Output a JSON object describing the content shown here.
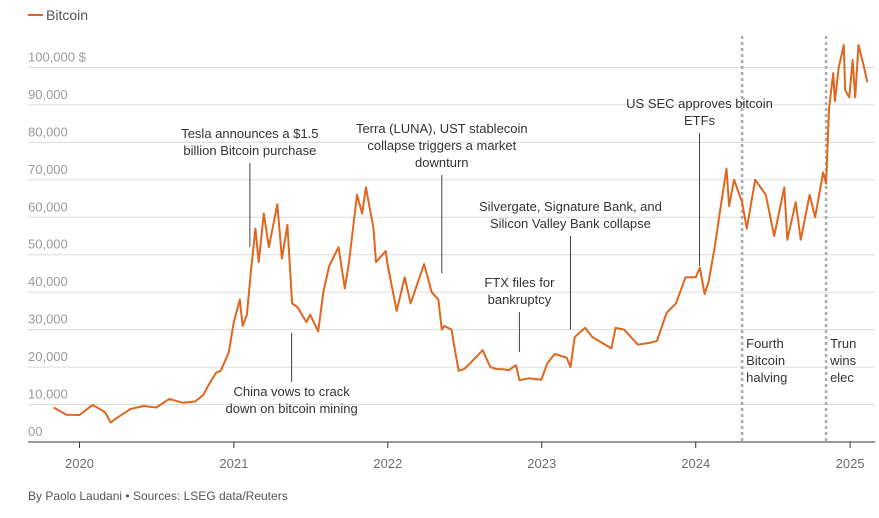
{
  "chart_data": {
    "type": "line",
    "legend": {
      "label": "Bitcoin",
      "color": "#e0661f",
      "placement": "top-left"
    },
    "ylabel_unit": "$",
    "ylim": [
      0,
      110000
    ],
    "yticks": [
      {
        "value": 0,
        "label": "00"
      },
      {
        "value": 10000,
        "label": "10,000"
      },
      {
        "value": 20000,
        "label": "20,000"
      },
      {
        "value": 30000,
        "label": "30,000"
      },
      {
        "value": 40000,
        "label": "40,000"
      },
      {
        "value": 50000,
        "label": "50,000"
      },
      {
        "value": 60000,
        "label": "60,000"
      },
      {
        "value": 70000,
        "label": "70,000"
      },
      {
        "value": 80000,
        "label": "80,000"
      },
      {
        "value": 90000,
        "label": "90,000"
      },
      {
        "value": 100000,
        "label": "100,000 $"
      }
    ],
    "xlim": [
      "2019-09-01",
      "2025-03-01"
    ],
    "xticks": [
      {
        "date": "2020-01-01",
        "label": "2020"
      },
      {
        "date": "2021-01-01",
        "label": "2021"
      },
      {
        "date": "2022-01-01",
        "label": "2022"
      },
      {
        "date": "2023-01-01",
        "label": "2023"
      },
      {
        "date": "2024-01-01",
        "label": "2024"
      },
      {
        "date": "2025-01-01",
        "label": "2025"
      }
    ],
    "grid": "horizontal",
    "series": [
      {
        "name": "Bitcoin",
        "color": "#e0661f",
        "points": [
          [
            "2019-11-01",
            9200
          ],
          [
            "2019-12-01",
            7300
          ],
          [
            "2020-01-01",
            7200
          ],
          [
            "2020-02-01",
            9900
          ],
          [
            "2020-03-01",
            8000
          ],
          [
            "2020-03-15",
            5200
          ],
          [
            "2020-04-01",
            6600
          ],
          [
            "2020-05-01",
            8800
          ],
          [
            "2020-06-01",
            9600
          ],
          [
            "2020-07-01",
            9200
          ],
          [
            "2020-08-01",
            11500
          ],
          [
            "2020-09-01",
            10500
          ],
          [
            "2020-10-01",
            10800
          ],
          [
            "2020-10-20",
            12500
          ],
          [
            "2020-11-01",
            15000
          ],
          [
            "2020-11-20",
            18500
          ],
          [
            "2020-12-01",
            19000
          ],
          [
            "2020-12-20",
            24000
          ],
          [
            "2021-01-01",
            32000
          ],
          [
            "2021-01-15",
            38000
          ],
          [
            "2021-01-22",
            31000
          ],
          [
            "2021-02-01",
            34000
          ],
          [
            "2021-02-10",
            45000
          ],
          [
            "2021-02-21",
            57000
          ],
          [
            "2021-03-01",
            48000
          ],
          [
            "2021-03-13",
            61000
          ],
          [
            "2021-03-25",
            52000
          ],
          [
            "2021-04-14",
            63500
          ],
          [
            "2021-04-25",
            49000
          ],
          [
            "2021-05-08",
            58000
          ],
          [
            "2021-05-19",
            37000
          ],
          [
            "2021-06-01",
            36000
          ],
          [
            "2021-06-22",
            32000
          ],
          [
            "2021-07-01",
            34000
          ],
          [
            "2021-07-20",
            29500
          ],
          [
            "2021-08-01",
            40000
          ],
          [
            "2021-08-15",
            47000
          ],
          [
            "2021-09-06",
            52000
          ],
          [
            "2021-09-21",
            41000
          ],
          [
            "2021-10-01",
            48000
          ],
          [
            "2021-10-20",
            66000
          ],
          [
            "2021-11-01",
            61000
          ],
          [
            "2021-11-10",
            68000
          ],
          [
            "2021-11-28",
            57000
          ],
          [
            "2021-12-04",
            48000
          ],
          [
            "2021-12-27",
            51000
          ],
          [
            "2022-01-01",
            47000
          ],
          [
            "2022-01-22",
            35000
          ],
          [
            "2022-02-10",
            44000
          ],
          [
            "2022-02-24",
            37000
          ],
          [
            "2022-03-28",
            47500
          ],
          [
            "2022-04-15",
            40000
          ],
          [
            "2022-05-01",
            38000
          ],
          [
            "2022-05-09",
            30000
          ],
          [
            "2022-05-15",
            31000
          ],
          [
            "2022-06-01",
            30000
          ],
          [
            "2022-06-13",
            22000
          ],
          [
            "2022-06-18",
            19000
          ],
          [
            "2022-07-01",
            19500
          ],
          [
            "2022-07-15",
            21000
          ],
          [
            "2022-08-01",
            23000
          ],
          [
            "2022-08-14",
            24500
          ],
          [
            "2022-09-01",
            20000
          ],
          [
            "2022-09-15",
            19500
          ],
          [
            "2022-10-01",
            19400
          ],
          [
            "2022-10-15",
            19200
          ],
          [
            "2022-11-01",
            20500
          ],
          [
            "2022-11-09",
            16500
          ],
          [
            "2022-12-01",
            17000
          ],
          [
            "2022-12-31",
            16600
          ],
          [
            "2023-01-14",
            21000
          ],
          [
            "2023-02-01",
            23500
          ],
          [
            "2023-03-01",
            22500
          ],
          [
            "2023-03-10",
            20000
          ],
          [
            "2023-03-20",
            28000
          ],
          [
            "2023-04-14",
            30500
          ],
          [
            "2023-05-01",
            28000
          ],
          [
            "2023-06-15",
            25000
          ],
          [
            "2023-06-25",
            30500
          ],
          [
            "2023-07-15",
            30000
          ],
          [
            "2023-08-17",
            26000
          ],
          [
            "2023-09-15",
            26500
          ],
          [
            "2023-10-01",
            27000
          ],
          [
            "2023-10-24",
            34500
          ],
          [
            "2023-11-15",
            37000
          ],
          [
            "2023-12-08",
            44000
          ],
          [
            "2024-01-01",
            44000
          ],
          [
            "2024-01-11",
            46500
          ],
          [
            "2024-01-22",
            39500
          ],
          [
            "2024-02-01",
            43000
          ],
          [
            "2024-02-15",
            52000
          ],
          [
            "2024-02-28",
            62000
          ],
          [
            "2024-03-14",
            73000
          ],
          [
            "2024-03-20",
            63000
          ],
          [
            "2024-04-01",
            70000
          ],
          [
            "2024-04-20",
            64000
          ],
          [
            "2024-05-01",
            57000
          ],
          [
            "2024-05-21",
            70000
          ],
          [
            "2024-06-15",
            66000
          ],
          [
            "2024-07-05",
            55000
          ],
          [
            "2024-07-29",
            68000
          ],
          [
            "2024-08-05",
            54000
          ],
          [
            "2024-08-25",
            64000
          ],
          [
            "2024-09-06",
            54000
          ],
          [
            "2024-09-27",
            66000
          ],
          [
            "2024-10-10",
            60000
          ],
          [
            "2024-10-29",
            72000
          ],
          [
            "2024-11-05",
            69000
          ],
          [
            "2024-11-12",
            89000
          ],
          [
            "2024-11-22",
            98500
          ],
          [
            "2024-11-26",
            91000
          ],
          [
            "2024-12-05",
            100000
          ],
          [
            "2024-12-17",
            106000
          ],
          [
            "2024-12-20",
            94000
          ],
          [
            "2024-12-30",
            92000
          ],
          [
            "2025-01-07",
            102000
          ],
          [
            "2025-01-13",
            92000
          ],
          [
            "2025-01-21",
            106000
          ],
          [
            "2025-02-01",
            101000
          ],
          [
            "2025-02-11",
            96000
          ]
        ]
      }
    ],
    "vlines": [
      {
        "date": "2024-04-20",
        "label": "Fourth Bitcoin halving",
        "lines": [
          "Fourth",
          "Bitcoin",
          "halving"
        ]
      },
      {
        "date": "2024-11-05",
        "label": "Trump wins election",
        "lines": [
          "Trun",
          "wins",
          "elec"
        ]
      }
    ],
    "annotations": [
      {
        "date": "2021-02-08",
        "value": 52000,
        "text_top": 138,
        "lines": [
          "Tesla announces a $1.5",
          "billion Bitcoin purchase"
        ],
        "position": "above"
      },
      {
        "date": "2022-05-09",
        "value": 45000,
        "text_top": 133,
        "lines": [
          "Terra (LUNA), UST stablecoin",
          "collapse triggers a market",
          "downturn"
        ],
        "position": "above"
      },
      {
        "date": "2023-03-10",
        "value": 30000,
        "text_top": 211,
        "lines": [
          "Silvergate, Signature Bank, and",
          "Silicon Valley Bank collapse"
        ],
        "position": "above"
      },
      {
        "date": "2024-01-10",
        "value": 47000,
        "text_top": 108,
        "lines": [
          "US SEC approves bitcoin",
          "ETFs"
        ],
        "position": "above"
      },
      {
        "date": "2022-11-09",
        "value": 24000,
        "text_top": 287,
        "lines": [
          "FTX files for",
          "bankruptcy"
        ],
        "position": "above"
      },
      {
        "date": "2021-05-18",
        "value": 30000,
        "text_top": 396,
        "lines": [
          "China vows to crack",
          "down on bitcoin mining"
        ],
        "position": "below"
      }
    ]
  },
  "legend_label": "Bitcoin",
  "source_text": "By Paolo Laudani • Sources: LSEG data/Reuters"
}
